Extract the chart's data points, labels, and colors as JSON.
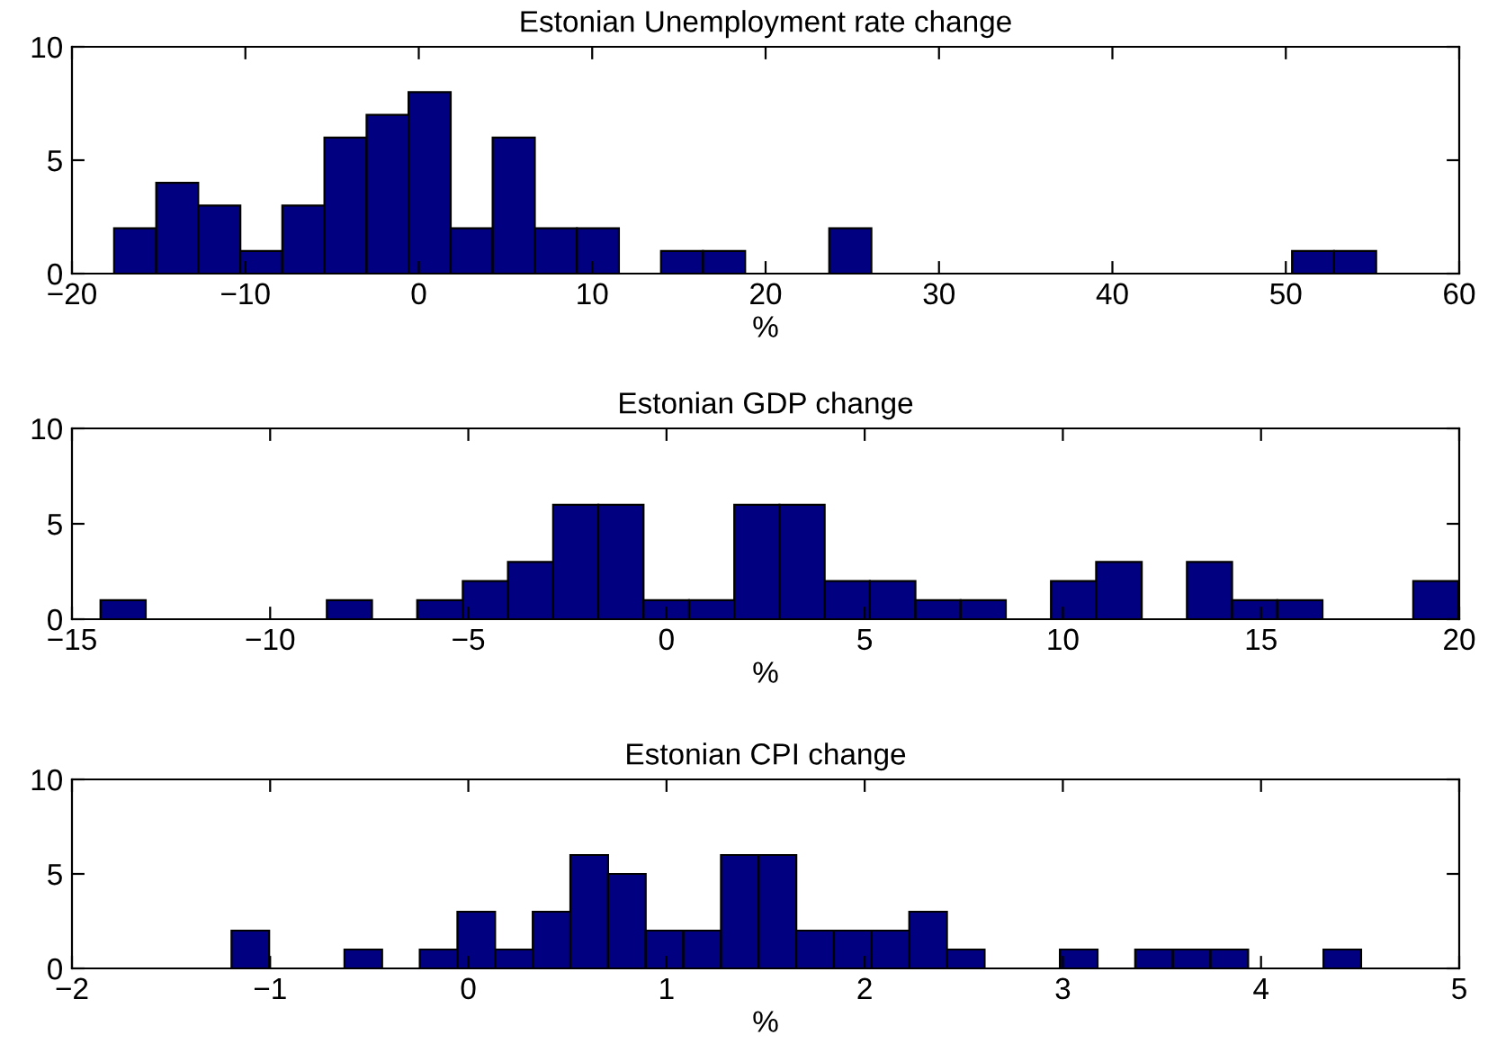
{
  "chart_data": [
    {
      "type": "histogram",
      "title": "Estonian Unemployment rate change",
      "xlabel": "%",
      "color": "#000080",
      "bins": [
        -17.57,
        -15.14,
        -12.72,
        -10.29,
        -7.87,
        -5.44,
        -3.01,
        -0.59,
        1.84,
        4.26,
        6.69,
        9.12,
        11.54,
        13.97,
        16.39,
        18.82,
        21.25,
        23.67,
        26.1,
        28.52,
        30.95,
        33.38,
        35.8,
        38.23,
        40.65,
        43.08,
        45.51,
        47.93,
        50.36,
        52.78,
        55.21
      ],
      "values": [
        2,
        4,
        3,
        1,
        3,
        6,
        7,
        8,
        2,
        6,
        2,
        2,
        0,
        1,
        1,
        0,
        0,
        2,
        0,
        0,
        0,
        0,
        0,
        0,
        0,
        0,
        0,
        0,
        1,
        1
      ],
      "xlim": [
        -20,
        60
      ],
      "xticks": [
        -20,
        -10,
        0,
        10,
        20,
        30,
        40,
        50,
        60
      ],
      "ylim": [
        0,
        10
      ],
      "yticks": [
        0,
        5,
        10
      ],
      "grid": false,
      "legend": false
    },
    {
      "type": "histogram",
      "title": "Estonian GDP change",
      "xlabel": "%",
      "color": "#000080",
      "bins": [
        -14.28,
        -13.14,
        -12.0,
        -10.85,
        -9.71,
        -8.57,
        -7.43,
        -6.29,
        -5.14,
        -4.0,
        -2.86,
        -1.72,
        -0.58,
        0.57,
        1.71,
        2.85,
        3.99,
        5.13,
        6.28,
        7.42,
        8.56,
        9.7,
        10.84,
        11.99,
        13.13,
        14.27,
        15.41,
        16.55,
        17.7,
        18.84,
        19.98
      ],
      "values": [
        1,
        0,
        0,
        0,
        0,
        1,
        0,
        1,
        2,
        3,
        6,
        6,
        1,
        1,
        6,
        6,
        2,
        2,
        1,
        1,
        0,
        2,
        3,
        0,
        3,
        1,
        1,
        0,
        0,
        2
      ],
      "xlim": [
        -15,
        20
      ],
      "xticks": [
        -15,
        -10,
        -5,
        0,
        5,
        10,
        15,
        20
      ],
      "ylim": [
        0,
        10
      ],
      "yticks": [
        0,
        5,
        10
      ],
      "grid": false,
      "legend": false
    },
    {
      "type": "histogram",
      "title": "Estonian CPI change",
      "xlabel": "%",
      "color": "#000080",
      "bins": [
        -1.195,
        -1.005,
        -0.815,
        -0.625,
        -0.435,
        -0.245,
        -0.055,
        0.135,
        0.325,
        0.515,
        0.705,
        0.895,
        1.085,
        1.275,
        1.465,
        1.655,
        1.845,
        2.035,
        2.225,
        2.415,
        2.605,
        2.795,
        2.985,
        3.175,
        3.365,
        3.555,
        3.745,
        3.935,
        4.125,
        4.315,
        4.505
      ],
      "values": [
        2,
        0,
        0,
        1,
        0,
        1,
        3,
        1,
        3,
        6,
        5,
        2,
        2,
        6,
        6,
        2,
        2,
        2,
        3,
        1,
        0,
        0,
        1,
        0,
        1,
        1,
        1,
        0,
        0,
        1
      ],
      "xlim": [
        -2,
        5
      ],
      "xticks": [
        -2,
        -1,
        0,
        1,
        2,
        3,
        4,
        5
      ],
      "ylim": [
        0,
        10
      ],
      "yticks": [
        0,
        5,
        10
      ],
      "grid": false,
      "legend": false
    }
  ]
}
